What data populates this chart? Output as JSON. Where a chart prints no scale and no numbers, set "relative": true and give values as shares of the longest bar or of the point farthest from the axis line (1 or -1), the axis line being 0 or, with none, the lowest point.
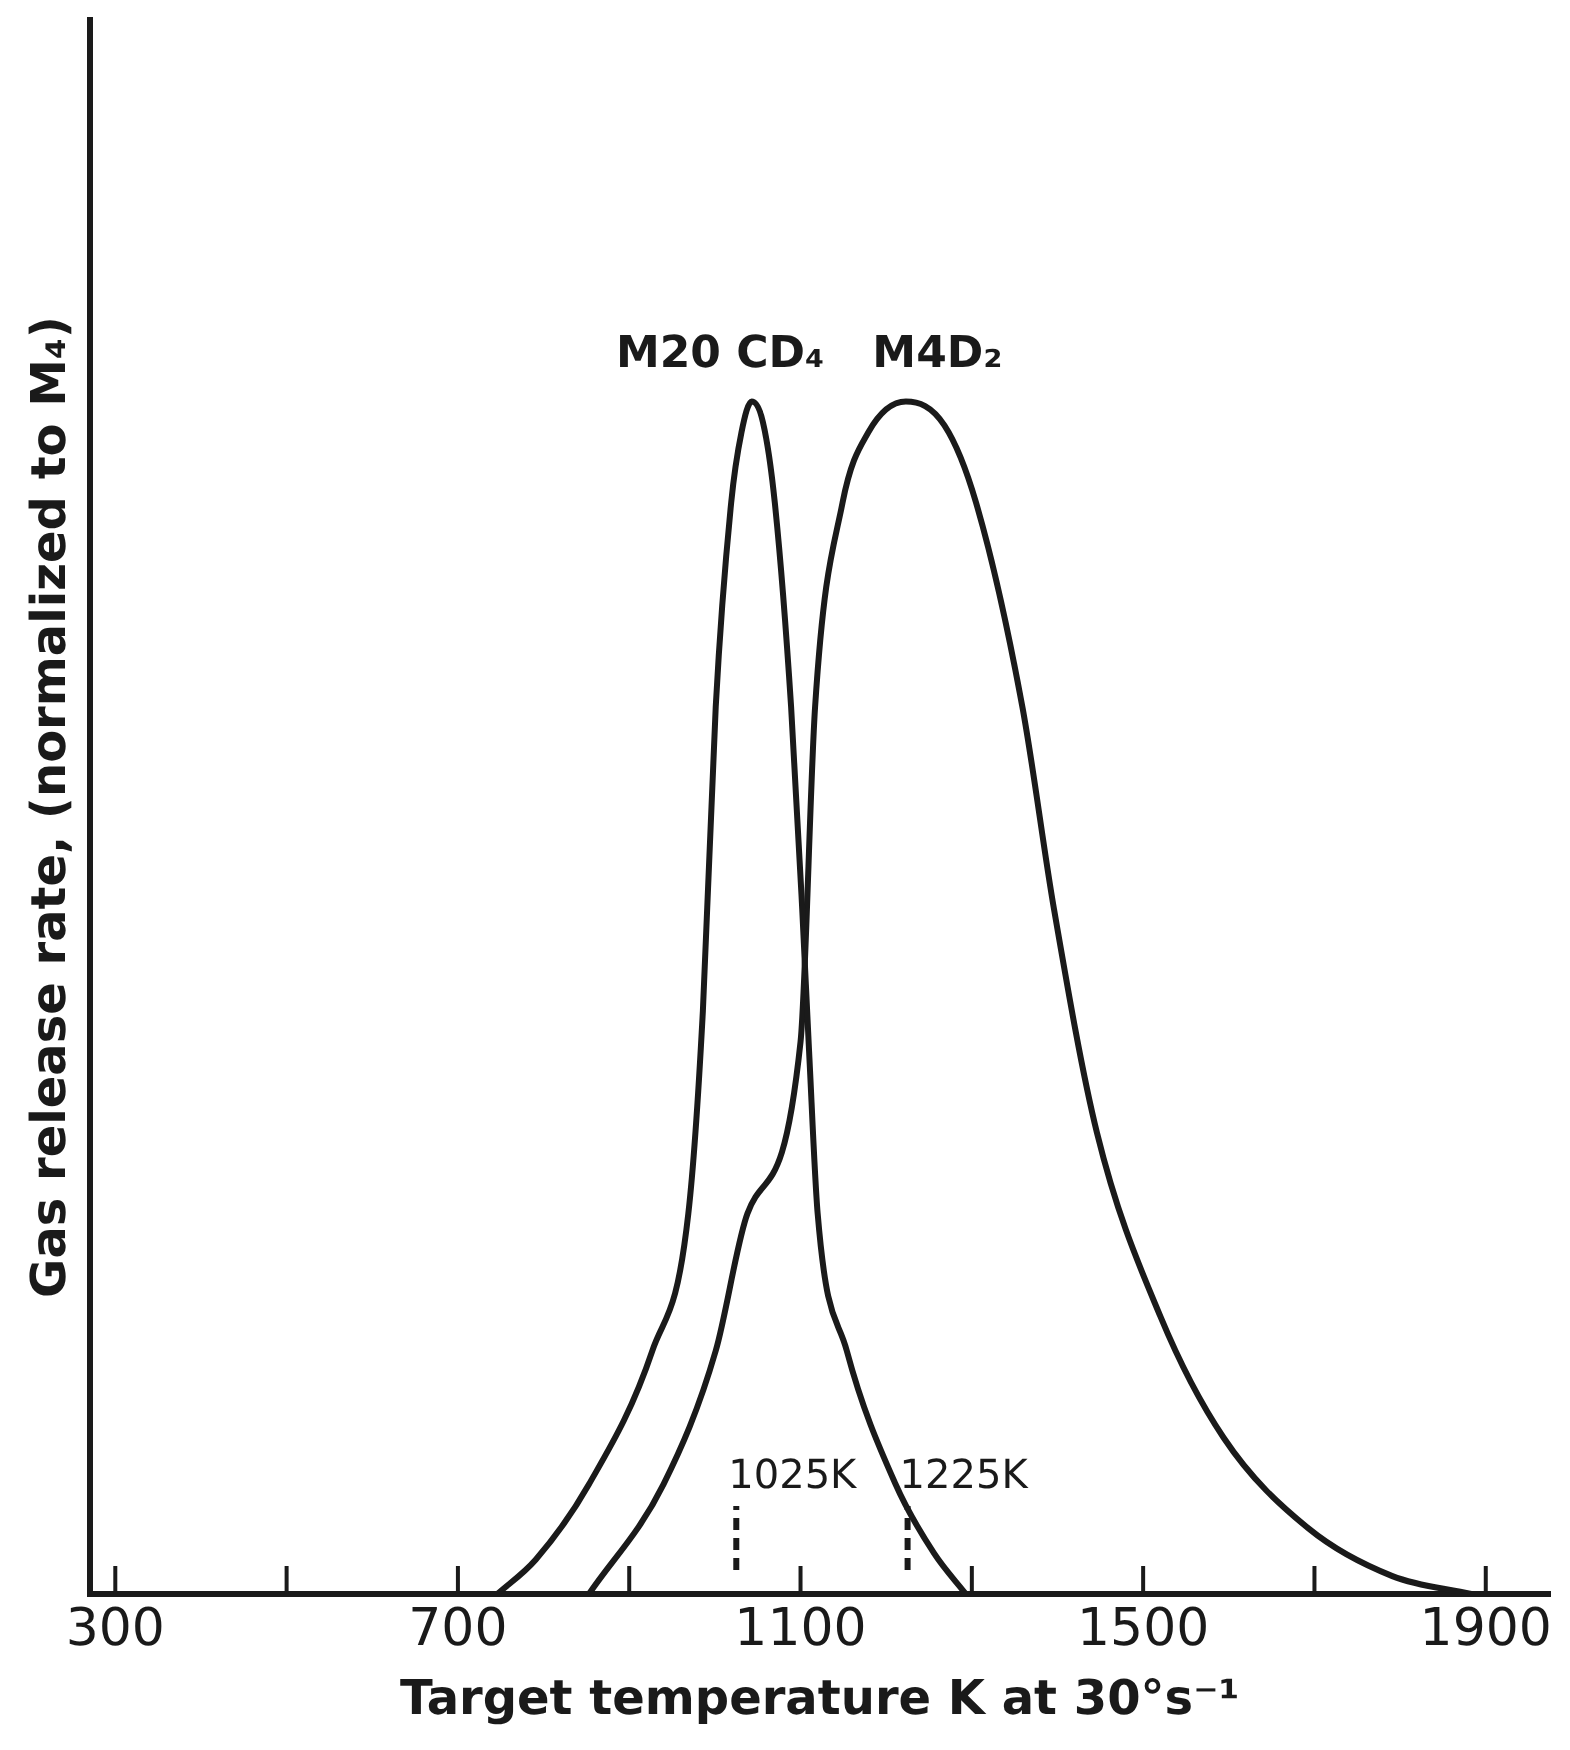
{
  "chart_data": {
    "type": "line",
    "relative": true,
    "xlabel": "Target temperature K at 30°s⁻¹",
    "ylabel": "Gas release rate, (normalized to M₄)",
    "xlim": [
      270,
      1975
    ],
    "xticks": [
      300,
      {
        "value": 500,
        "label": null
      },
      700,
      {
        "value": 900,
        "label": null
      },
      1100,
      {
        "value": 1300,
        "label": null
      },
      1500,
      {
        "value": 1700,
        "label": null
      },
      1900
    ],
    "grid": false,
    "legend": false,
    "marker": "none",
    "line_style": "solid",
    "series": [
      {
        "name": "M20 CD₄",
        "color": "#1a1a1a",
        "x": [
          746,
          791,
          853,
          927,
          969,
          986,
          1001,
          1019,
          1031,
          1043,
          1056,
          1070,
          1089,
          1102,
          1110,
          1120,
          1154,
          1211,
          1256,
          1293
        ],
        "values": [
          0,
          0.029,
          0.092,
          0.204,
          0.319,
          0.489,
          0.744,
          0.915,
          0.974,
          1.0,
          0.983,
          0.915,
          0.744,
          0.574,
          0.455,
          0.319,
          0.204,
          0.092,
          0.034,
          0
        ]
      },
      {
        "name": "M4D₂",
        "color": "#1a1a1a",
        "x": [
          853,
          940,
          1001,
          1038,
          1100,
          1117,
          1149,
          1179,
          1223,
          1268,
          1305,
          1359,
          1396,
          1446,
          1520,
          1594,
          1693,
          1791,
          1883
        ],
        "values": [
          0,
          0.092,
          0.204,
          0.319,
          0.463,
          0.744,
          0.915,
          0.974,
          1.0,
          0.98,
          0.915,
          0.744,
          0.574,
          0.387,
          0.233,
          0.131,
          0.055,
          0.015,
          0
        ]
      }
    ],
    "ref_lines": [
      {
        "axis": "x",
        "value": 1025,
        "label": "1025K",
        "color": "#1a1a1a",
        "line_style": "dashed"
      },
      {
        "axis": "x",
        "value": 1225,
        "label": "1225K",
        "color": "#1a1a1a",
        "line_style": "dashed"
      }
    ]
  }
}
